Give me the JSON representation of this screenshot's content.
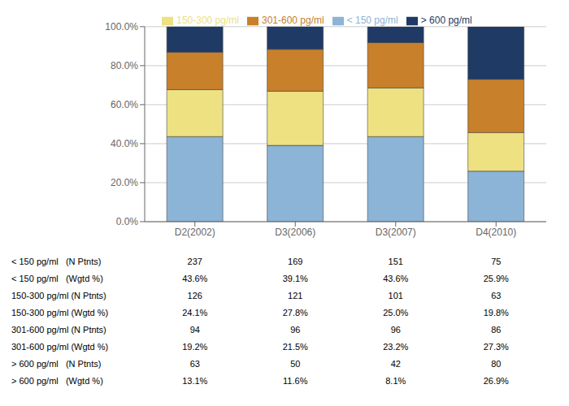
{
  "chart_data": {
    "type": "bar",
    "stacked": true,
    "categories": [
      "D2(2002)",
      "D3(2006)",
      "D3(2007)",
      "D4(2010)"
    ],
    "series": [
      {
        "name": "< 150 pg/ml",
        "color": "#8cb4d6",
        "values": [
          43.6,
          39.1,
          43.6,
          25.9
        ]
      },
      {
        "name": "150-300 pg/ml",
        "color": "#ede182",
        "values": [
          24.1,
          27.8,
          25.0,
          19.8
        ]
      },
      {
        "name": "301-600 pg/ml",
        "color": "#c8802a",
        "values": [
          19.2,
          21.5,
          23.2,
          27.3
        ]
      },
      {
        "name": "> 600 pg/ml",
        "color": "#1f3a64",
        "values": [
          13.1,
          11.6,
          8.1,
          26.9
        ]
      }
    ],
    "ylim": [
      0,
      100
    ],
    "yticks": [
      {
        "value": 0,
        "label": "0.0%"
      },
      {
        "value": 20,
        "label": "20.0%"
      },
      {
        "value": 40,
        "label": "40.0%"
      },
      {
        "value": 60,
        "label": "60.0%"
      },
      {
        "value": 80,
        "label": "80.0%"
      },
      {
        "value": 100,
        "label": "100.0%"
      }
    ],
    "grid": true,
    "legend": "top",
    "table_rows": [
      {
        "label": "< 150 pg/ml   (N Ptnts)",
        "values": [
          237,
          169,
          151,
          75
        ]
      },
      {
        "label": "< 150 pg/ml   (Wgtd %)",
        "values": [
          43.6,
          39.1,
          43.6,
          25.9
        ],
        "value_labels": [
          "43.6%",
          "39.1%",
          "43.6%",
          "25.9%"
        ]
      },
      {
        "label": "150-300 pg/ml (N Ptnts)",
        "values": [
          126,
          121,
          101,
          63
        ]
      },
      {
        "label": "150-300 pg/ml (Wgtd %)",
        "values": [
          24.1,
          27.8,
          25.0,
          19.8
        ],
        "value_labels": [
          "24.1%",
          "27.8%",
          "25.0%",
          "19.8%"
        ]
      },
      {
        "label": "301-600 pg/ml (N Ptnts)",
        "values": [
          94,
          96,
          96,
          86
        ]
      },
      {
        "label": "301-600 pg/ml (Wgtd %)",
        "values": [
          19.2,
          21.5,
          23.2,
          27.3
        ],
        "value_labels": [
          "19.2%",
          "21.5%",
          "23.2%",
          "27.3%"
        ]
      },
      {
        "label": "> 600 pg/ml   (N Ptnts)",
        "values": [
          63,
          50,
          42,
          80
        ]
      },
      {
        "label": "> 600 pg/ml   (Wgtd %)",
        "values": [
          13.1,
          11.6,
          8.1,
          26.9
        ],
        "value_labels": [
          "13.1%",
          "11.6%",
          "8.1%",
          "26.9%"
        ]
      }
    ]
  }
}
